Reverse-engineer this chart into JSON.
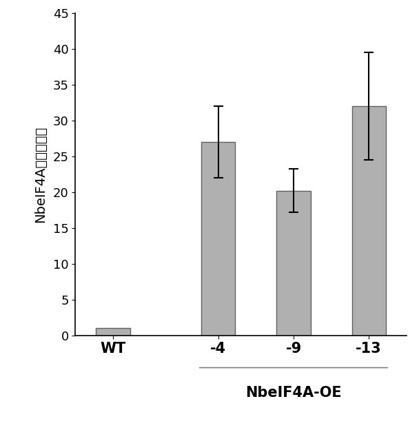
{
  "categories": [
    "WT",
    "-4",
    "-9",
    "-13"
  ],
  "values": [
    1.0,
    27.0,
    20.2,
    32.0
  ],
  "errors": [
    0.0,
    5.0,
    3.0,
    7.5
  ],
  "bar_color": "#b0b0b0",
  "bar_edgecolor": "#606060",
  "ylabel": "NbeIF4A相对表达量",
  "ylim": [
    0,
    45
  ],
  "yticks": [
    0,
    5,
    10,
    15,
    20,
    25,
    30,
    35,
    40,
    45
  ],
  "group_label": "NbeIF4A-OE",
  "background_color": "#ffffff",
  "bar_width": 0.45,
  "label_fontsize": 14,
  "tick_fontsize": 13,
  "group_label_fontsize": 15,
  "xtick_fontsize": 15
}
